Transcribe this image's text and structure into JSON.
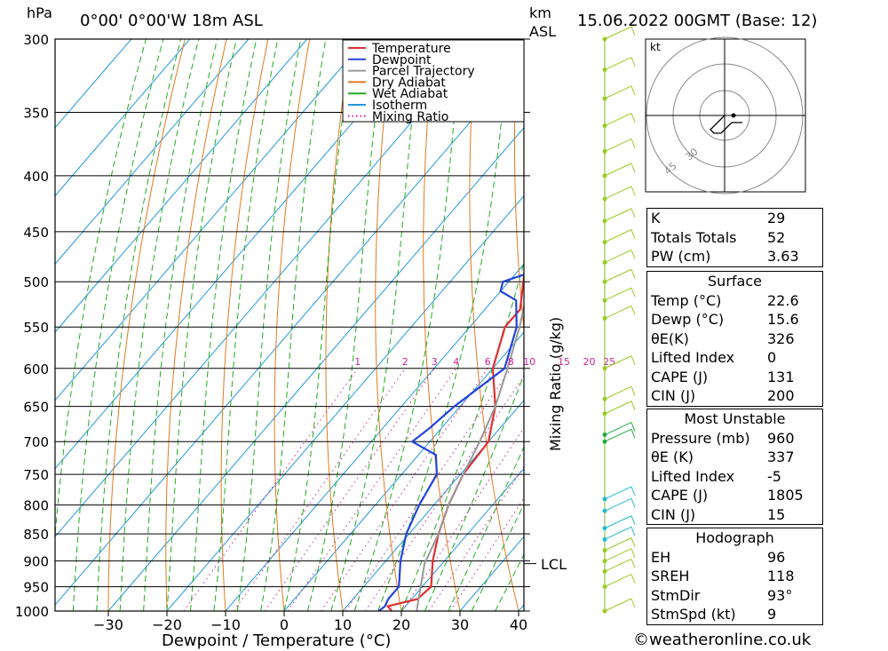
{
  "header": {
    "left_unit": "hPa",
    "location": "0°00' 0°00'W 18m ASL",
    "km_label": "km",
    "asl_label": "ASL",
    "datetime": "15.06.2022 00GMT (Base: 12)"
  },
  "legend": [
    {
      "label": "Temperature",
      "color": "#e03030",
      "style": "solid"
    },
    {
      "label": "Dewpoint",
      "color": "#2244dd",
      "style": "solid"
    },
    {
      "label": "Parcel Trajectory",
      "color": "#999999",
      "style": "solid"
    },
    {
      "label": "Dry Adiabat",
      "color": "#e07a20",
      "style": "solid"
    },
    {
      "label": "Wet Adiabat",
      "color": "#22aa22",
      "style": "solid"
    },
    {
      "label": "Isotherm",
      "color": "#2299dd",
      "style": "solid"
    },
    {
      "label": "Mixing Ratio",
      "color": "#cc2299",
      "style": "dotted"
    }
  ],
  "chart_data": {
    "type": "line",
    "title": "Skew-T log-P diagram",
    "xlabel": "Dewpoint / Temperature (°C)",
    "ylabel": "hPa",
    "right_axis_label": "Mixing Ratio (g/kg)",
    "x_ticks": [
      -30,
      -20,
      -10,
      0,
      10,
      20,
      30,
      40
    ],
    "pressure_levels": [
      300,
      350,
      400,
      450,
      500,
      550,
      600,
      650,
      700,
      750,
      800,
      850,
      900,
      950,
      1000
    ],
    "mixing_ratio_labels": [
      "1",
      "2",
      "3",
      "4",
      "6",
      "8",
      "10",
      "15",
      "20",
      "25"
    ],
    "lcl_label": "LCL",
    "lcl_pressure": 905,
    "series": [
      {
        "name": "Temperature",
        "color": "#e03030",
        "points": [
          [
            1005,
            19
          ],
          [
            990,
            17
          ],
          [
            975,
            21
          ],
          [
            950,
            21.5
          ],
          [
            900,
            18
          ],
          [
            850,
            15
          ],
          [
            800,
            12.5
          ],
          [
            750,
            10.5
          ],
          [
            700,
            10
          ],
          [
            650,
            6
          ],
          [
            600,
            0
          ],
          [
            550,
            -4
          ],
          [
            530,
            -4
          ],
          [
            500,
            -7.5
          ],
          [
            450,
            -14
          ],
          [
            400,
            -21
          ],
          [
            370,
            -26
          ],
          [
            350,
            -31
          ],
          [
            320,
            -36.5
          ],
          [
            300,
            -39
          ]
        ]
      },
      {
        "name": "Dewpoint",
        "color": "#2244dd",
        "points": [
          [
            1005,
            16
          ],
          [
            990,
            16.5
          ],
          [
            975,
            16
          ],
          [
            950,
            16
          ],
          [
            900,
            12.5
          ],
          [
            850,
            9.5
          ],
          [
            800,
            7.5
          ],
          [
            750,
            6
          ],
          [
            720,
            3
          ],
          [
            700,
            -3
          ],
          [
            680,
            -2
          ],
          [
            650,
            -1
          ],
          [
            600,
            2
          ],
          [
            550,
            -2
          ],
          [
            520,
            -6
          ],
          [
            510,
            -10
          ],
          [
            500,
            -11
          ],
          [
            480,
            -4
          ],
          [
            450,
            -9
          ],
          [
            420,
            -14
          ],
          [
            400,
            -20
          ],
          [
            380,
            -18
          ],
          [
            370,
            -16
          ],
          [
            350,
            -17
          ],
          [
            330,
            -18
          ],
          [
            300,
            -20
          ]
        ]
      },
      {
        "name": "Parcel Trajectory",
        "color": "#999999",
        "points": [
          [
            1000,
            22.6
          ],
          [
            905,
            17
          ],
          [
            850,
            15
          ],
          [
            800,
            12.5
          ],
          [
            750,
            10.5
          ],
          [
            700,
            8.5
          ],
          [
            650,
            6
          ],
          [
            600,
            2.5
          ],
          [
            550,
            -1.5
          ],
          [
            500,
            -6.5
          ],
          [
            450,
            -12
          ],
          [
            400,
            -18.5
          ],
          [
            350,
            -27
          ],
          [
            300,
            -37
          ]
        ]
      }
    ]
  },
  "wind_profile": {
    "levels": [
      300,
      320,
      340,
      360,
      380,
      400,
      420,
      440,
      460,
      480,
      500,
      520,
      540,
      600,
      640,
      660,
      690,
      700,
      790,
      810,
      840,
      860,
      880,
      900,
      920,
      950,
      1000
    ]
  },
  "hodograph": {
    "unit": "kt",
    "ring_labels": [
      "30",
      "45"
    ],
    "path": [
      [
        0,
        0
      ],
      [
        -1,
        -1
      ],
      [
        -2,
        -2
      ],
      [
        -3,
        -3
      ],
      [
        -4,
        -4
      ],
      [
        -3,
        -5
      ],
      [
        -1,
        -5
      ],
      [
        2,
        -2
      ],
      [
        5,
        -2
      ]
    ]
  },
  "indices": {
    "top": [
      {
        "label": "K",
        "value": "29"
      },
      {
        "label": "Totals Totals",
        "value": "52"
      },
      {
        "label": "PW (cm)",
        "value": "3.63"
      }
    ],
    "surface": {
      "title": "Surface",
      "rows": [
        {
          "label": "Temp (°C)",
          "value": "22.6"
        },
        {
          "label": "Dewp (°C)",
          "value": "15.6"
        },
        {
          "label": "θE(K)",
          "value": "326"
        },
        {
          "label": "Lifted Index",
          "value": "0"
        },
        {
          "label": "CAPE (J)",
          "value": "131"
        },
        {
          "label": "CIN (J)",
          "value": "200"
        }
      ]
    },
    "most_unstable": {
      "title": "Most Unstable",
      "rows": [
        {
          "label": "Pressure (mb)",
          "value": "960"
        },
        {
          "label": "θE (K)",
          "value": "337"
        },
        {
          "label": "Lifted Index",
          "value": "-5"
        },
        {
          "label": "CAPE (J)",
          "value": "1805"
        },
        {
          "label": "CIN (J)",
          "value": "15"
        }
      ]
    },
    "hodograph": {
      "title": "Hodograph",
      "rows": [
        {
          "label": "EH",
          "value": "96"
        },
        {
          "label": "SREH",
          "value": "118"
        },
        {
          "label": "StmDir",
          "value": "93°"
        },
        {
          "label": "StmSpd (kt)",
          "value": "9"
        }
      ]
    }
  },
  "footer": "©weatheronline.co.uk"
}
